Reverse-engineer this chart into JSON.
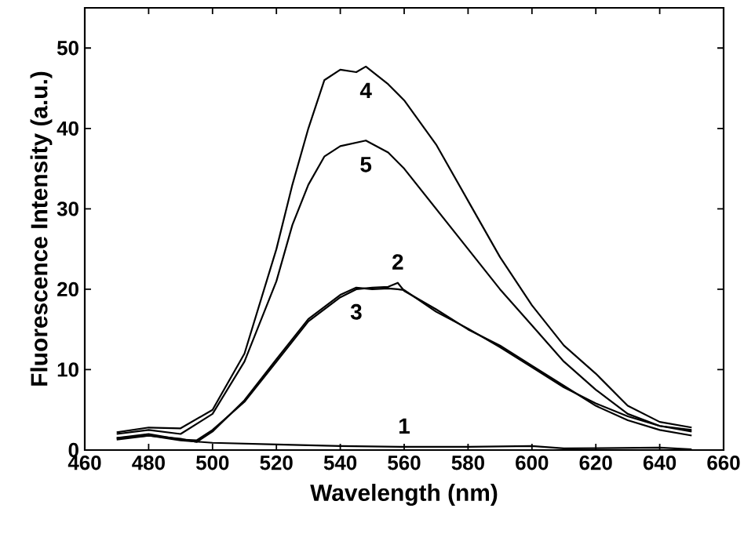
{
  "chart_data": {
    "type": "line",
    "xlabel": "Wavelength (nm)",
    "ylabel": "Fluorescence Intensity (a.u.)",
    "xlim": [
      460,
      660
    ],
    "ylim": [
      0,
      55
    ],
    "xticks": [
      460,
      480,
      500,
      520,
      540,
      560,
      580,
      600,
      620,
      640,
      660
    ],
    "yticks": [
      0,
      10,
      20,
      30,
      40,
      50
    ],
    "grid": false,
    "marker": "none",
    "line_style": "solid",
    "series": [
      {
        "name": "1",
        "color": "#000000",
        "x": [
          470,
          480,
          490,
          500,
          520,
          540,
          560,
          580,
          600,
          610,
          640,
          650
        ],
        "values": [
          1.5,
          1.8,
          1.2,
          0.9,
          0.7,
          0.5,
          0.4,
          0.4,
          0.5,
          0.2,
          0.3,
          0.1
        ]
      },
      {
        "name": "2",
        "color": "#000000",
        "x": [
          470,
          480,
          490,
          495,
          500,
          510,
          520,
          530,
          540,
          545,
          550,
          555,
          558,
          560,
          570,
          580,
          590,
          600,
          610,
          620,
          630,
          640,
          650
        ],
        "values": [
          1.5,
          2.0,
          1.3,
          1.2,
          2.5,
          6,
          11,
          16,
          19,
          20,
          20.2,
          20.3,
          20.8,
          19.8,
          17.5,
          15,
          13,
          10.5,
          8,
          5.5,
          3.7,
          2.5,
          1.8
        ]
      },
      {
        "name": "3",
        "color": "#000000",
        "x": [
          470,
          480,
          490,
          495,
          500,
          510,
          520,
          530,
          540,
          545,
          550,
          555,
          558,
          560,
          570,
          580,
          590,
          600,
          610,
          620,
          630,
          640,
          650
        ],
        "values": [
          1.3,
          1.8,
          1.4,
          1.0,
          2.3,
          6.2,
          11.3,
          16.3,
          19.3,
          20.2,
          20.0,
          20.1,
          20.0,
          19.9,
          17.2,
          15.1,
          12.8,
          10.3,
          7.8,
          5.8,
          4.2,
          3.0,
          2.3
        ]
      },
      {
        "name": "4",
        "color": "#000000",
        "x": [
          470,
          480,
          490,
          500,
          510,
          520,
          525,
          530,
          535,
          540,
          545,
          548,
          555,
          560,
          570,
          580,
          590,
          600,
          610,
          620,
          630,
          640,
          650
        ],
        "values": [
          2.2,
          2.8,
          2.7,
          5,
          12,
          25,
          33,
          40,
          46,
          47.3,
          47,
          47.7,
          45.5,
          43.5,
          38,
          31,
          24,
          18,
          13,
          9.5,
          5.5,
          3.5,
          2.8
        ]
      },
      {
        "name": "5",
        "color": "#000000",
        "x": [
          470,
          480,
          490,
          500,
          510,
          520,
          525,
          530,
          535,
          540,
          548,
          555,
          560,
          570,
          580,
          590,
          600,
          610,
          620,
          630,
          640,
          650
        ],
        "values": [
          2.0,
          2.5,
          2.0,
          4.5,
          11,
          21,
          28,
          33,
          36.5,
          37.8,
          38.5,
          37,
          35,
          30,
          25,
          20,
          15.5,
          11,
          7.5,
          4.5,
          3,
          2.5
        ]
      }
    ]
  }
}
